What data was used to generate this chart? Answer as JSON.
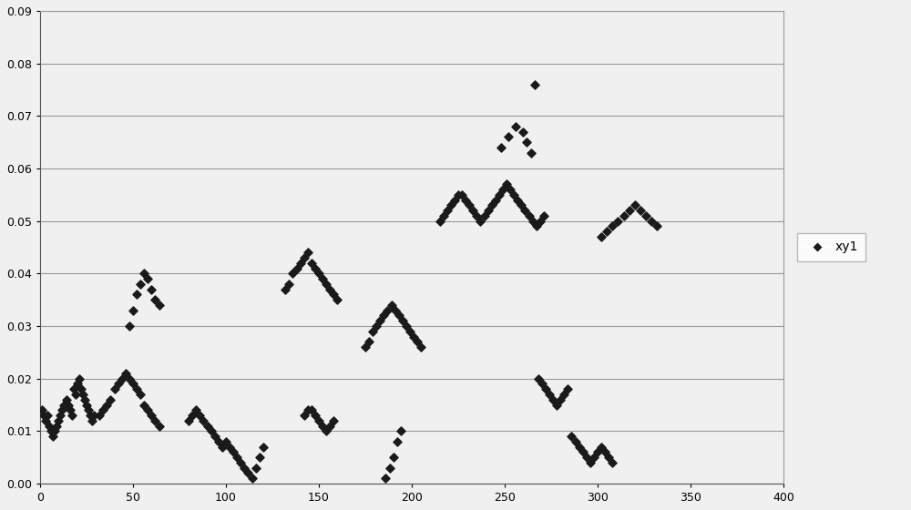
{
  "x": [
    1,
    2,
    3,
    4,
    5,
    6,
    7,
    8,
    9,
    10,
    11,
    12,
    13,
    14,
    15,
    16,
    17,
    18,
    19,
    20,
    21,
    22,
    23,
    24,
    25,
    26,
    27,
    28,
    29,
    32,
    34,
    36,
    38,
    40,
    42,
    44,
    46,
    48,
    50,
    52,
    54,
    56,
    58,
    60,
    62,
    64,
    48,
    50,
    52,
    54,
    56,
    58,
    60,
    62,
    64,
    80,
    82,
    84,
    86,
    88,
    90,
    92,
    94,
    96,
    98,
    100,
    102,
    104,
    106,
    108,
    110,
    112,
    114,
    116,
    118,
    120,
    132,
    134,
    136,
    138,
    140,
    142,
    144,
    146,
    148,
    150,
    152,
    154,
    156,
    158,
    160,
    142,
    144,
    146,
    148,
    150,
    152,
    154,
    156,
    158,
    175,
    177,
    179,
    181,
    183,
    185,
    187,
    189,
    191,
    193,
    195,
    197,
    199,
    201,
    203,
    205,
    186,
    188,
    190,
    192,
    194,
    215,
    217,
    219,
    221,
    223,
    225,
    227,
    229,
    231,
    233,
    235,
    237,
    239,
    241,
    243,
    245,
    247,
    249,
    251,
    253,
    255,
    257,
    259,
    261,
    263,
    265,
    267,
    269,
    271,
    248,
    252,
    256,
    260,
    262,
    264,
    266,
    268,
    270,
    272,
    274,
    276,
    278,
    280,
    282,
    284,
    286,
    288,
    290,
    292,
    294,
    296,
    298,
    300,
    302,
    304,
    306,
    308,
    302,
    305,
    308,
    311,
    314,
    317,
    320,
    323,
    326,
    329,
    332
  ],
  "y": [
    0.014,
    0.013,
    0.012,
    0.013,
    0.011,
    0.01,
    0.009,
    0.01,
    0.011,
    0.012,
    0.013,
    0.014,
    0.015,
    0.016,
    0.015,
    0.014,
    0.013,
    0.018,
    0.017,
    0.019,
    0.02,
    0.018,
    0.017,
    0.016,
    0.015,
    0.014,
    0.013,
    0.012,
    0.013,
    0.013,
    0.014,
    0.015,
    0.016,
    0.018,
    0.019,
    0.02,
    0.021,
    0.02,
    0.019,
    0.018,
    0.017,
    0.015,
    0.014,
    0.013,
    0.012,
    0.011,
    0.03,
    0.033,
    0.036,
    0.038,
    0.04,
    0.039,
    0.037,
    0.035,
    0.034,
    0.012,
    0.013,
    0.014,
    0.013,
    0.012,
    0.011,
    0.01,
    0.009,
    0.008,
    0.007,
    0.008,
    0.007,
    0.006,
    0.005,
    0.004,
    0.003,
    0.002,
    0.001,
    0.003,
    0.005,
    0.007,
    0.037,
    0.038,
    0.04,
    0.041,
    0.042,
    0.043,
    0.044,
    0.042,
    0.041,
    0.04,
    0.039,
    0.038,
    0.037,
    0.036,
    0.035,
    0.013,
    0.014,
    0.014,
    0.013,
    0.012,
    0.011,
    0.01,
    0.011,
    0.012,
    0.026,
    0.027,
    0.029,
    0.03,
    0.031,
    0.032,
    0.033,
    0.034,
    0.033,
    0.032,
    0.031,
    0.03,
    0.029,
    0.028,
    0.027,
    0.026,
    0.001,
    0.003,
    0.005,
    0.008,
    0.01,
    0.05,
    0.051,
    0.052,
    0.053,
    0.054,
    0.055,
    0.055,
    0.054,
    0.053,
    0.052,
    0.051,
    0.05,
    0.051,
    0.052,
    0.053,
    0.054,
    0.055,
    0.056,
    0.057,
    0.056,
    0.055,
    0.054,
    0.053,
    0.052,
    0.051,
    0.05,
    0.049,
    0.05,
    0.051,
    0.064,
    0.066,
    0.068,
    0.067,
    0.065,
    0.063,
    0.076,
    0.02,
    0.019,
    0.018,
    0.017,
    0.016,
    0.015,
    0.016,
    0.017,
    0.018,
    0.009,
    0.008,
    0.007,
    0.006,
    0.005,
    0.004,
    0.005,
    0.006,
    0.007,
    0.006,
    0.005,
    0.004,
    0.047,
    0.048,
    0.049,
    0.05,
    0.051,
    0.052,
    0.053,
    0.052,
    0.051,
    0.05,
    0.049
  ],
  "xlim": [
    0,
    400
  ],
  "ylim": [
    0,
    0.09
  ],
  "xticks": [
    0,
    50,
    100,
    150,
    200,
    250,
    300,
    350,
    400
  ],
  "yticks": [
    0,
    0.01,
    0.02,
    0.03,
    0.04,
    0.05,
    0.06,
    0.07,
    0.08,
    0.09
  ],
  "legend_label": "xy1",
  "marker_color": "#1a1a1a",
  "background_color": "#f0f0f0",
  "grid_color": "#999999"
}
